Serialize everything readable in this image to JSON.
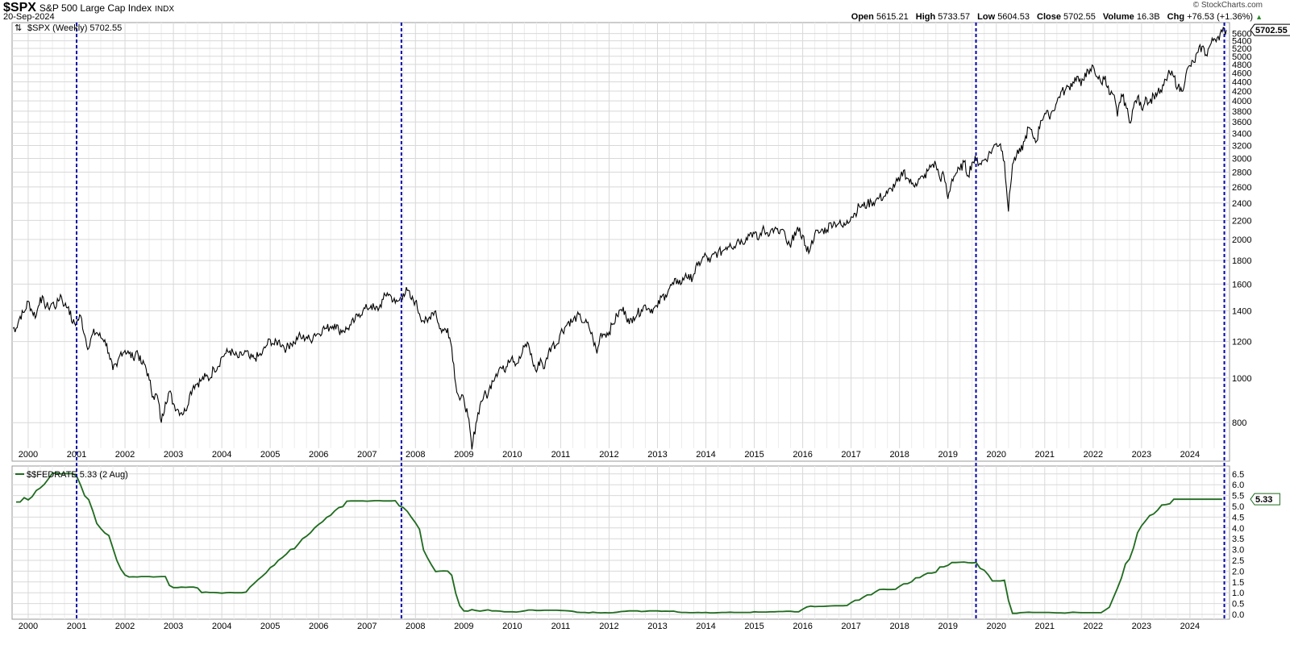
{
  "header": {
    "symbol": "$SPX",
    "name": "S&P 500 Large Cap Index",
    "exchange": "INDX",
    "date": "20-Sep-2024",
    "copyright": "© StockCharts.com",
    "open_label": "Open",
    "open": "5615.21",
    "high_label": "High",
    "high": "5733.57",
    "low_label": "Low",
    "low": "5604.53",
    "close_label": "Close",
    "close": "5702.55",
    "volume_label": "Volume",
    "volume": "16.3B",
    "chg_label": "Chg",
    "chg": "+76.53 (+1.36%)",
    "chg_icon": "up-triangle-icon"
  },
  "colors": {
    "price": "#000000",
    "fedrate": "#1e6b1e",
    "markers": "#0000aa",
    "grid": "#d8d8d8",
    "grid_minor": "#ececec"
  },
  "chart_data": [
    {
      "type": "line",
      "legend": "$SPX (Weekly) 5702.55",
      "last_value_label": "5702.55",
      "x_start": "Sep 1999",
      "frequency": "monthly (approx.)",
      "y_scale": "log",
      "ylim": [
        650,
        5800
      ],
      "y_ticks": [
        800,
        1000,
        1200,
        1400,
        1600,
        1800,
        2000,
        2200,
        2400,
        2600,
        2800,
        3000,
        3200,
        3400,
        3600,
        3800,
        4000,
        4200,
        4400,
        4600,
        4800,
        5000,
        5200,
        5400,
        5600
      ],
      "x_ticks": [
        "2000",
        "2001",
        "2002",
        "2003",
        "2004",
        "2005",
        "2006",
        "2007",
        "2008",
        "2009",
        "2010",
        "2011",
        "2012",
        "2013",
        "2014",
        "2015",
        "2016",
        "2017",
        "2018",
        "2019",
        "2020",
        "2021",
        "2022",
        "2023",
        "2024"
      ],
      "grid": true,
      "values": [
        1283,
        1362,
        1389,
        1469,
        1394,
        1366,
        1499,
        1452,
        1421,
        1455,
        1431,
        1518,
        1437,
        1429,
        1315,
        1320,
        1366,
        1240,
        1160,
        1249,
        1256,
        1224,
        1211,
        1134,
        1041,
        1060,
        1139,
        1148,
        1130,
        1107,
        1147,
        1076,
        1067,
        990,
        912,
        916,
        800,
        886,
        936,
        880,
        856,
        841,
        848,
        917,
        964,
        975,
        990,
        1008,
        996,
        1051,
        1058,
        1112,
        1131,
        1145,
        1126,
        1107,
        1121,
        1141,
        1102,
        1104,
        1115,
        1130,
        1174,
        1212,
        1181,
        1204,
        1181,
        1157,
        1192,
        1191,
        1234,
        1220,
        1229,
        1207,
        1249,
        1248,
        1280,
        1281,
        1295,
        1311,
        1270,
        1270,
        1277,
        1304,
        1336,
        1378,
        1401,
        1418,
        1438,
        1407,
        1421,
        1482,
        1531,
        1503,
        1455,
        1474,
        1527,
        1549,
        1481,
        1468,
        1379,
        1331,
        1323,
        1386,
        1400,
        1280,
        1267,
        1283,
        1165,
        969,
        896,
        903,
        826,
        700,
        798,
        873,
        919,
        919,
        987,
        1021,
        1057,
        1036,
        1096,
        1115,
        1074,
        1104,
        1169,
        1187,
        1089,
        1031,
        1102,
        1049,
        1141,
        1183,
        1181,
        1258,
        1286,
        1327,
        1326,
        1364,
        1345,
        1321,
        1292,
        1219,
        1131,
        1253,
        1247,
        1258,
        1312,
        1366,
        1408,
        1398,
        1310,
        1362,
        1379,
        1407,
        1441,
        1412,
        1416,
        1426,
        1498,
        1515,
        1569,
        1598,
        1631,
        1606,
        1686,
        1633,
        1682,
        1757,
        1806,
        1848,
        1783,
        1859,
        1872,
        1884,
        1924,
        1960,
        1931,
        2003,
        1972,
        2018,
        2068,
        2059,
        1995,
        2105,
        2068,
        2086,
        2107,
        2063,
        2104,
        1972,
        1920,
        2079,
        2080,
        2044,
        1880,
        1932,
        2060,
        2065,
        2097,
        2099,
        2174,
        2171,
        2168,
        2126,
        2199,
        2239,
        2279,
        2364,
        2363,
        2384,
        2412,
        2423,
        2470,
        2472,
        2519,
        2575,
        2648,
        2674,
        2824,
        2714,
        2641,
        2648,
        2705,
        2718,
        2816,
        2902,
        2914,
        2712,
        2760,
        2450,
        2704,
        2784,
        2834,
        2946,
        2752,
        2942,
        2980,
        2926,
        2977,
        3038,
        3141,
        3231,
        3226,
        2954,
        2300,
        2912,
        3044,
        3100,
        3271,
        3500,
        3363,
        3270,
        3622,
        3756,
        3714,
        3811,
        3973,
        4181,
        4204,
        4298,
        4395,
        4523,
        4308,
        4605,
        4567,
        4766,
        4516,
        4374,
        4530,
        4132,
        4132,
        3700,
        4130,
        3955,
        3586,
        3872,
        4080,
        3840,
        4077,
        3970,
        4109,
        4169,
        4180,
        4450,
        4589,
        4508,
        4288,
        4194,
        4568,
        4770,
        4846,
        5096,
        5254,
        5036,
        5278,
        5460,
        5522,
        5648,
        5702.55
      ]
    },
    {
      "type": "line",
      "legend": "$$FEDRATE 5.33 (2 Aug)",
      "last_value_label": "5.33",
      "x_start": "Sep 1999",
      "frequency": "monthly (approx.)",
      "ylim": [
        0,
        6.5
      ],
      "y_ticks": [
        "0.0",
        "0.5",
        "1.0",
        "1.5",
        "2.0",
        "2.5",
        "3.0",
        "3.5",
        "4.0",
        "4.5",
        "5.0",
        "5.5",
        "6.0",
        "6.5"
      ],
      "x_ticks": [
        "2000",
        "2001",
        "2002",
        "2003",
        "2004",
        "2005",
        "2006",
        "2007",
        "2008",
        "2009",
        "2010",
        "2011",
        "2012",
        "2013",
        "2014",
        "2015",
        "2016",
        "2017",
        "2018",
        "2019",
        "2020",
        "2021",
        "2022",
        "2023",
        "2024"
      ],
      "grid": true,
      "values": [
        5.2,
        5.2,
        5.4,
        5.3,
        5.45,
        5.73,
        5.85,
        6.02,
        6.27,
        6.53,
        6.54,
        6.5,
        6.52,
        6.51,
        6.51,
        6.4,
        5.98,
        5.49,
        5.31,
        4.8,
        4.21,
        3.97,
        3.77,
        3.65,
        3.07,
        2.49,
        2.09,
        1.82,
        1.73,
        1.74,
        1.73,
        1.75,
        1.75,
        1.75,
        1.73,
        1.74,
        1.75,
        1.75,
        1.34,
        1.24,
        1.24,
        1.26,
        1.25,
        1.26,
        1.26,
        1.22,
        1.01,
        1.03,
        1.01,
        1.01,
        1.0,
        0.98,
        1.0,
        1.01,
        1.0,
        1.0,
        1.0,
        1.03,
        1.26,
        1.43,
        1.61,
        1.76,
        1.93,
        2.16,
        2.28,
        2.5,
        2.63,
        2.79,
        3.0,
        3.04,
        3.26,
        3.5,
        3.62,
        3.78,
        4.0,
        4.16,
        4.29,
        4.49,
        4.59,
        4.79,
        4.94,
        4.99,
        5.24,
        5.25,
        5.25,
        5.25,
        5.25,
        5.24,
        5.25,
        5.26,
        5.26,
        5.25,
        5.25,
        5.25,
        5.26,
        5.02,
        4.94,
        4.76,
        4.49,
        4.24,
        3.94,
        2.98,
        2.61,
        2.28,
        1.98,
        2.0,
        2.01,
        2.0,
        1.81,
        0.97,
        0.39,
        0.16,
        0.15,
        0.22,
        0.18,
        0.15,
        0.18,
        0.21,
        0.16,
        0.16,
        0.15,
        0.12,
        0.12,
        0.12,
        0.11,
        0.13,
        0.16,
        0.2,
        0.2,
        0.18,
        0.18,
        0.19,
        0.19,
        0.19,
        0.19,
        0.18,
        0.17,
        0.16,
        0.14,
        0.1,
        0.09,
        0.09,
        0.07,
        0.1,
        0.08,
        0.07,
        0.08,
        0.07,
        0.08,
        0.1,
        0.13,
        0.14,
        0.16,
        0.16,
        0.16,
        0.13,
        0.14,
        0.16,
        0.16,
        0.16,
        0.14,
        0.15,
        0.14,
        0.15,
        0.11,
        0.09,
        0.09,
        0.08,
        0.08,
        0.09,
        0.08,
        0.09,
        0.07,
        0.07,
        0.08,
        0.09,
        0.09,
        0.1,
        0.09,
        0.09,
        0.09,
        0.09,
        0.09,
        0.12,
        0.11,
        0.11,
        0.11,
        0.12,
        0.12,
        0.13,
        0.13,
        0.14,
        0.14,
        0.12,
        0.12,
        0.24,
        0.34,
        0.38,
        0.36,
        0.37,
        0.37,
        0.38,
        0.39,
        0.4,
        0.4,
        0.4,
        0.41,
        0.54,
        0.65,
        0.66,
        0.79,
        0.9,
        0.91,
        1.04,
        1.15,
        1.16,
        1.15,
        1.15,
        1.16,
        1.3,
        1.41,
        1.42,
        1.51,
        1.69,
        1.7,
        1.82,
        1.91,
        1.91,
        1.95,
        2.19,
        2.2,
        2.27,
        2.4,
        2.4,
        2.41,
        2.42,
        2.39,
        2.38,
        2.4,
        2.13,
        2.04,
        1.83,
        1.55,
        1.55,
        1.55,
        1.58,
        0.65,
        0.05,
        0.05,
        0.08,
        0.09,
        0.1,
        0.09,
        0.09,
        0.09,
        0.09,
        0.09,
        0.08,
        0.07,
        0.07,
        0.06,
        0.08,
        0.1,
        0.09,
        0.08,
        0.08,
        0.08,
        0.08,
        0.08,
        0.08,
        0.2,
        0.33,
        0.77,
        1.21,
        1.68,
        2.33,
        2.56,
        3.08,
        3.78,
        4.1,
        4.33,
        4.57,
        4.65,
        4.83,
        5.06,
        5.08,
        5.12,
        5.33,
        5.33,
        5.33,
        5.33,
        5.33,
        5.33,
        5.33,
        5.33,
        5.33,
        5.33,
        5.33,
        5.33,
        5.33
      ]
    }
  ],
  "markers": {
    "dates": [
      "Jan 2001",
      "Sep 2007",
      "Jul 2019",
      "Sep 2024"
    ]
  }
}
